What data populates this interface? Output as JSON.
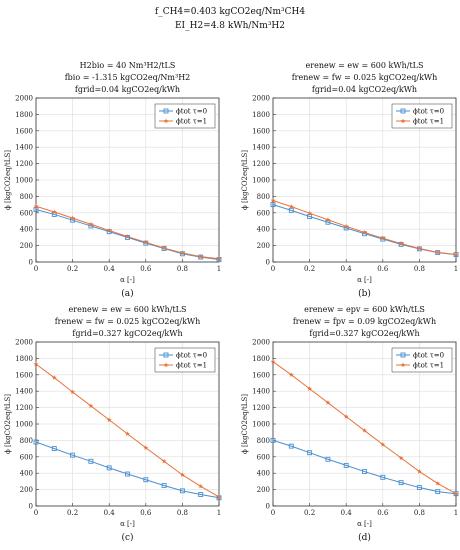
{
  "figure": {
    "header_lines": [
      "f_CH4=0.403 kgCO2eq/Nm³CH4",
      "EI_H2=4.8 kWh/Nm³H2"
    ]
  },
  "chart_data": [
    {
      "type": "line",
      "panel": "a",
      "caption": "(a)",
      "subtitle_lines": [
        "H2bio = 40 Nm³H2/tLS",
        "fbio = -1.315 kgCO2eq/Nm³H2",
        "fgrid=0.04 kgCO2eq/kWh"
      ],
      "xlabel": "α [-]",
      "ylabel": "ϕ [kgCO2eq/tLS]",
      "xlim": [
        0,
        1
      ],
      "ylim": [
        0,
        2000
      ],
      "xticks": [
        0,
        0.2,
        0.4,
        0.6,
        0.8,
        1
      ],
      "yticks": [
        0,
        200,
        400,
        600,
        800,
        1000,
        1200,
        1400,
        1600,
        1800,
        2000
      ],
      "grid": true,
      "legend_position": "top-right",
      "x": [
        0,
        0.1,
        0.2,
        0.3,
        0.4,
        0.5,
        0.6,
        0.7,
        0.8,
        0.9,
        1.0
      ],
      "series": [
        {
          "name": "ϕtot τ=0",
          "color": "#4a8fd0",
          "marker": "square",
          "values": [
            640,
            580,
            510,
            440,
            370,
            300,
            230,
            165,
            100,
            60,
            30
          ]
        },
        {
          "name": "ϕtot τ=1",
          "color": "#e8743b",
          "marker": "star",
          "values": [
            680,
            610,
            535,
            460,
            385,
            310,
            240,
            170,
            110,
            65,
            40
          ]
        }
      ]
    },
    {
      "type": "line",
      "panel": "b",
      "caption": "(b)",
      "subtitle_lines": [
        "erenew = ew = 600 kWh/tLS",
        "frenew = fw = 0.025 kgCO2eq/kWh",
        "fgrid=0.04 kgCO2eq/kWh"
      ],
      "xlabel": "α [-]",
      "ylabel": "ϕ [kgCO2eq/tLS]",
      "xlim": [
        0,
        1
      ],
      "ylim": [
        0,
        2000
      ],
      "xticks": [
        0,
        0.2,
        0.4,
        0.6,
        0.8,
        1
      ],
      "yticks": [
        0,
        200,
        400,
        600,
        800,
        1000,
        1200,
        1400,
        1600,
        1800,
        2000
      ],
      "grid": true,
      "legend_position": "top-right",
      "x": [
        0,
        0.1,
        0.2,
        0.3,
        0.4,
        0.5,
        0.6,
        0.7,
        0.8,
        0.9,
        1.0
      ],
      "series": [
        {
          "name": "ϕtot τ=0",
          "color": "#4a8fd0",
          "marker": "square",
          "values": [
            700,
            630,
            555,
            485,
            415,
            345,
            280,
            215,
            160,
            115,
            90
          ]
        },
        {
          "name": "ϕtot τ=1",
          "color": "#e8743b",
          "marker": "star",
          "values": [
            750,
            675,
            595,
            515,
            435,
            360,
            290,
            225,
            165,
            118,
            92
          ]
        }
      ]
    },
    {
      "type": "line",
      "panel": "c",
      "caption": "(c)",
      "subtitle_lines": [
        "erenew = ew = 600 kWh/tLS",
        "frenew = fw = 0.025 kgCO2eq/kWh",
        "fgrid=0.327 kgCO2eq/kWh"
      ],
      "xlabel": "α [-]",
      "ylabel": "ϕ [kgCO2eq/tLS]",
      "xlim": [
        0,
        1
      ],
      "ylim": [
        0,
        2000
      ],
      "xticks": [
        0,
        0.2,
        0.4,
        0.6,
        0.8,
        1
      ],
      "yticks": [
        0,
        200,
        400,
        600,
        800,
        1000,
        1200,
        1400,
        1600,
        1800,
        2000
      ],
      "grid": true,
      "legend_position": "top-right",
      "x": [
        0,
        0.1,
        0.2,
        0.3,
        0.4,
        0.5,
        0.6,
        0.7,
        0.8,
        0.9,
        1.0
      ],
      "series": [
        {
          "name": "ϕtot τ=0",
          "color": "#4a8fd0",
          "marker": "square",
          "values": [
            780,
            700,
            620,
            545,
            465,
            390,
            320,
            250,
            185,
            140,
            100
          ]
        },
        {
          "name": "ϕtot τ=1",
          "color": "#e8743b",
          "marker": "star",
          "values": [
            1730,
            1565,
            1390,
            1220,
            1050,
            880,
            710,
            545,
            380,
            240,
            110
          ]
        }
      ]
    },
    {
      "type": "line",
      "panel": "d",
      "caption": "(d)",
      "subtitle_lines": [
        "erenew = epv = 600 kWh/tLS",
        "frenew = fpv = 0.09 kgCO2eq/kWh",
        "fgrid=0.327 kgCO2eq/kWh"
      ],
      "xlabel": "α [-]",
      "ylabel": "ϕ [kgCO2eq/tLS]",
      "xlim": [
        0,
        1
      ],
      "ylim": [
        0,
        2000
      ],
      "xticks": [
        0,
        0.2,
        0.4,
        0.6,
        0.8,
        1
      ],
      "yticks": [
        0,
        200,
        400,
        600,
        800,
        1000,
        1200,
        1400,
        1600,
        1800,
        2000
      ],
      "grid": true,
      "legend_position": "top-right",
      "x": [
        0,
        0.1,
        0.2,
        0.3,
        0.4,
        0.5,
        0.6,
        0.7,
        0.8,
        0.9,
        1.0
      ],
      "series": [
        {
          "name": "ϕtot τ=0",
          "color": "#4a8fd0",
          "marker": "square",
          "values": [
            800,
            730,
            650,
            570,
            495,
            420,
            350,
            285,
            225,
            175,
            150
          ]
        },
        {
          "name": "ϕtot τ=1",
          "color": "#e8743b",
          "marker": "star",
          "values": [
            1760,
            1600,
            1430,
            1260,
            1090,
            920,
            750,
            585,
            420,
            275,
            150
          ]
        }
      ]
    }
  ]
}
